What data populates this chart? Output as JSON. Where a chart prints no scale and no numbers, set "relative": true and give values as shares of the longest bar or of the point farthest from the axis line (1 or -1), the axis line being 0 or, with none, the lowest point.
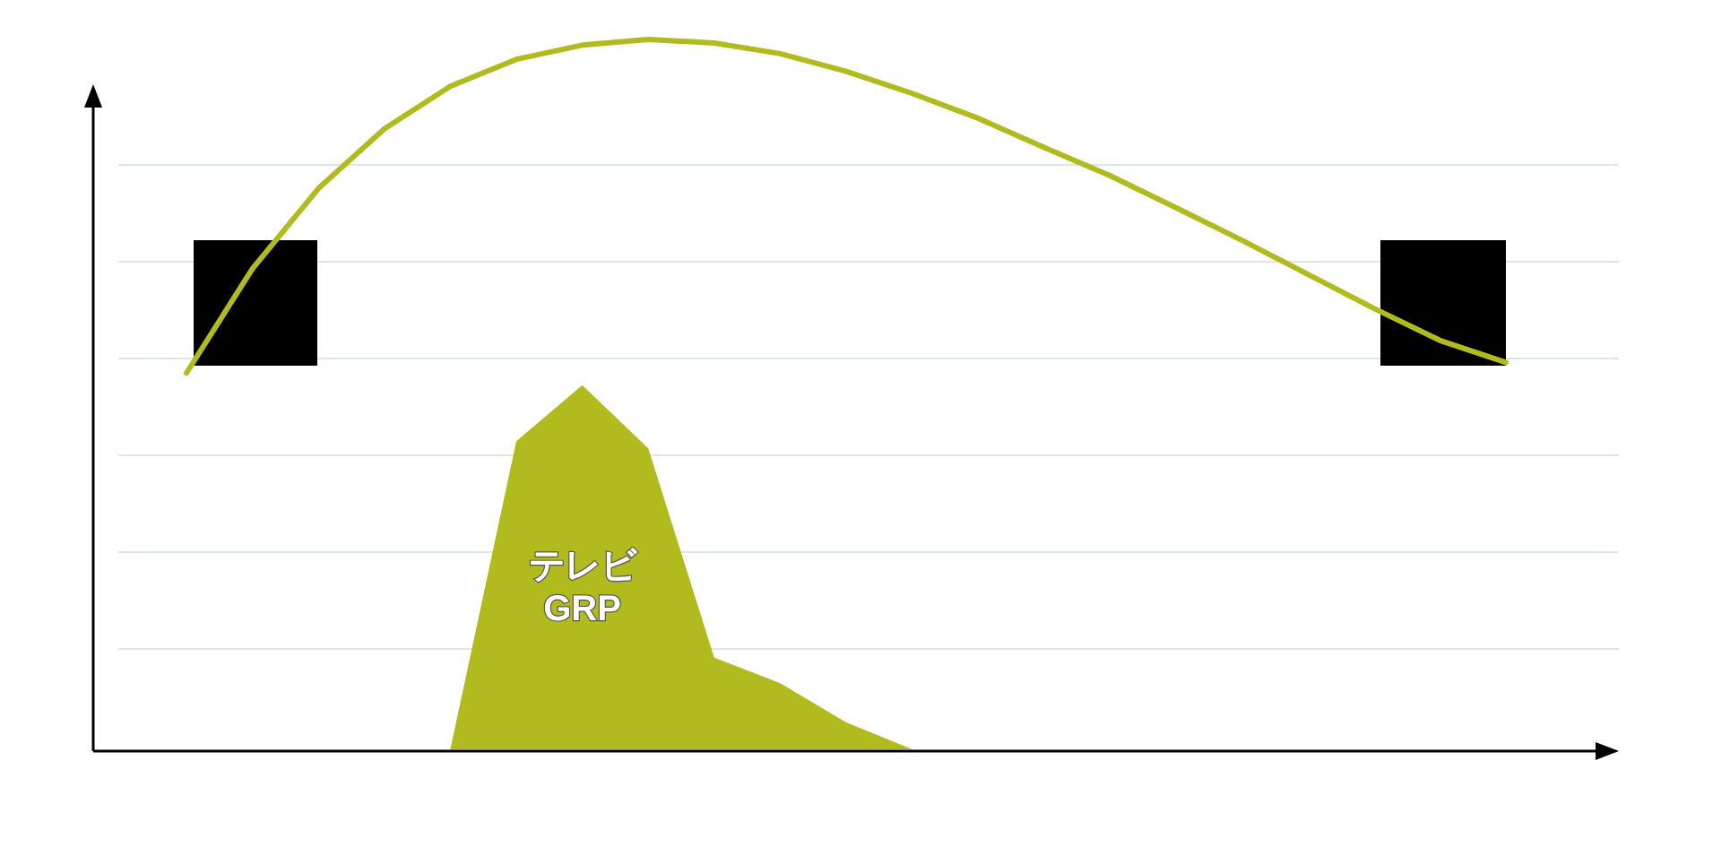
{
  "chart_data": {
    "type": "line",
    "relative": true,
    "grid": "y",
    "categories": [
      null,
      null,
      null,
      null,
      null,
      null,
      null,
      null,
      null,
      null,
      null,
      null,
      null,
      null,
      null,
      null,
      null,
      null,
      null,
      null,
      null
    ],
    "series": [
      {
        "color": "#b2bb1e",
        "values": [
          0.53,
          0.677,
          0.79,
          0.874,
          0.934,
          0.972,
          0.992,
          1,
          0.995,
          0.98,
          0.955,
          0.924,
          0.889,
          0.848,
          0.808,
          0.763,
          0.717,
          0.669,
          0.621,
          0.576,
          0.545
        ]
      },
      {
        "type": "area",
        "name": "テレビ GRP",
        "color": "#b2bb1e",
        "values": [
          null,
          null,
          null,
          null,
          0,
          0.434,
          0.513,
          0.424,
          0.129,
          0.093,
          0.038,
          0,
          null,
          null,
          null,
          null,
          null,
          null,
          null,
          null,
          null
        ]
      }
    ]
  }
}
